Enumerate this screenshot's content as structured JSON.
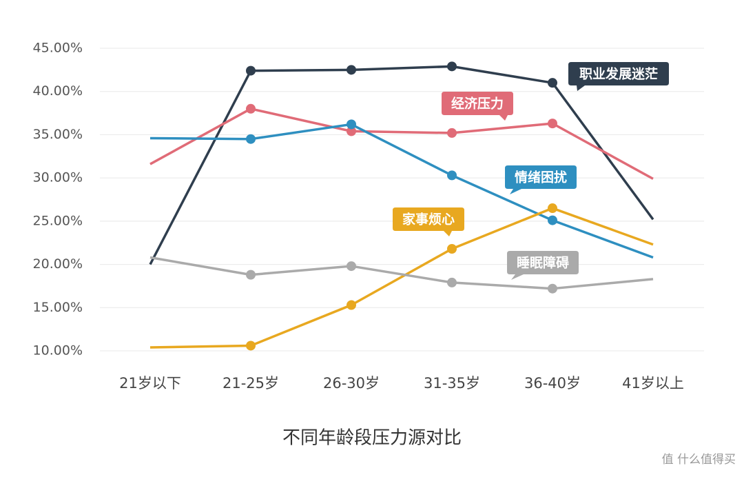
{
  "chart_data": {
    "type": "line",
    "title": "不同年龄段压力源对比",
    "categories": [
      "21岁以下",
      "21-25岁",
      "26-30岁",
      "31-35岁",
      "36-40岁",
      "41岁以上"
    ],
    "series": [
      {
        "name": "职业发展迷茫",
        "color": "#2f3e4e",
        "values": [
          20.0,
          42.4,
          42.5,
          42.9,
          41.0,
          25.2
        ]
      },
      {
        "name": "经济压力",
        "color": "#e06b77",
        "values": [
          31.6,
          38.0,
          35.4,
          35.2,
          36.3,
          29.9
        ]
      },
      {
        "name": "情绪困扰",
        "color": "#2e8fc0",
        "values": [
          34.6,
          34.5,
          36.2,
          30.3,
          25.1,
          20.8
        ]
      },
      {
        "name": "家事烦心",
        "color": "#e8a820",
        "values": [
          10.4,
          10.6,
          15.3,
          21.8,
          26.5,
          22.3
        ]
      },
      {
        "name": "睡眠障碍",
        "color": "#aaaaaa",
        "values": [
          20.8,
          18.8,
          19.8,
          17.9,
          17.2,
          18.3
        ]
      }
    ],
    "ylim": [
      10,
      45
    ],
    "yticks": [
      {
        "value": 10,
        "label": "10.00%"
      },
      {
        "value": 15,
        "label": "15.00%"
      },
      {
        "value": 20,
        "label": "20.00%"
      },
      {
        "value": 25,
        "label": "25.00%"
      },
      {
        "value": 30,
        "label": "30.00%"
      },
      {
        "value": 35,
        "label": "35.00%"
      },
      {
        "value": 40,
        "label": "40.00%"
      },
      {
        "value": 45,
        "label": "45.00%"
      }
    ],
    "grid": true
  },
  "watermark": "值 什么值得买"
}
